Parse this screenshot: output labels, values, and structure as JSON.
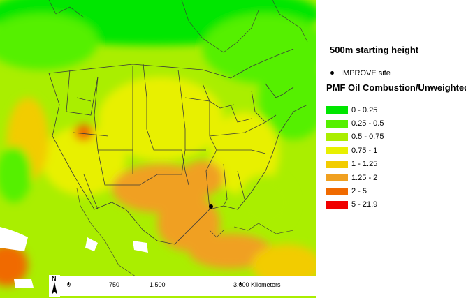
{
  "legend": {
    "height_label": "500m starting height",
    "site_label": "IMPROVE site",
    "layer_title": "PMF Oil Combustion/Unweighted",
    "classes": [
      {
        "label": "0 - 0.25",
        "color": "#00e600"
      },
      {
        "label": "0.25 - 0.5",
        "color": "#55f000"
      },
      {
        "label": "0.5 - 0.75",
        "color": "#aaee00"
      },
      {
        "label": "0.75 - 1",
        "color": "#e8f000"
      },
      {
        "label": "1 - 1.25",
        "color": "#f2cc00"
      },
      {
        "label": "1.25 - 2",
        "color": "#f0a020"
      },
      {
        "label": "2 - 5",
        "color": "#f06a00"
      },
      {
        "label": "5 - 21.9",
        "color": "#f00000"
      }
    ]
  },
  "scale": {
    "ticks": [
      "0",
      "750",
      "1,500",
      "3,000 Kilometers"
    ]
  },
  "north_arrow": {
    "label": "N"
  },
  "map": {
    "site_marker": "IMPROVE site near Mississippi delta",
    "water_color": "#ffffff"
  }
}
